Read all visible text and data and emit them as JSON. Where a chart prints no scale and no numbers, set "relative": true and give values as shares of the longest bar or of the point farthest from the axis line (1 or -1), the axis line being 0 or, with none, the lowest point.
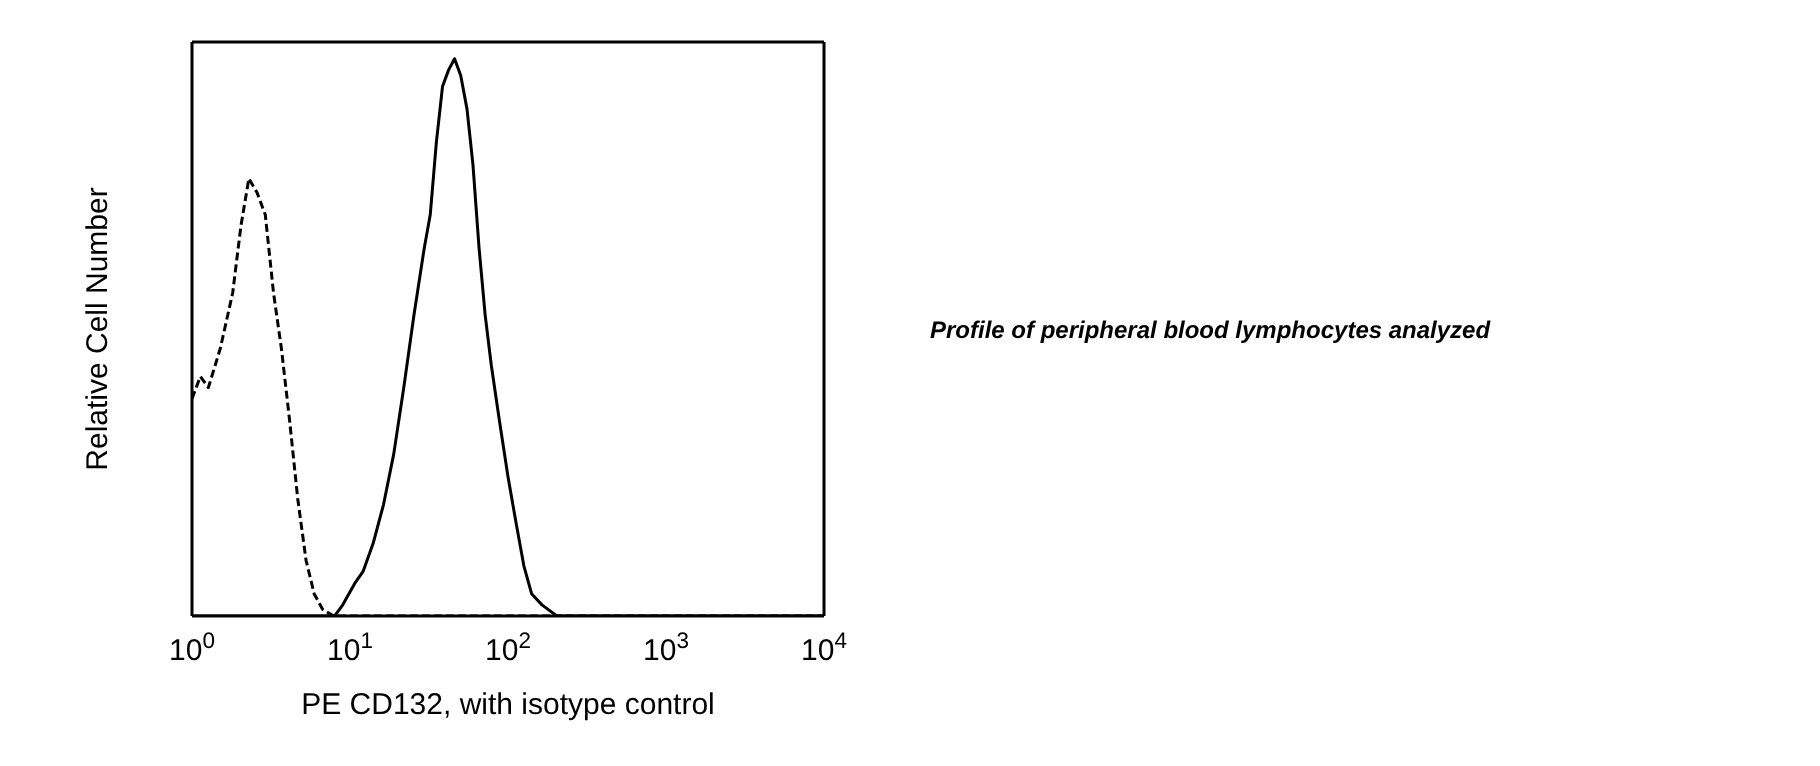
{
  "chart_data": {
    "type": "line",
    "xlabel": "PE CD132, with isotype control",
    "ylabel": "Relative Cell Number",
    "relative": true,
    "log": "x",
    "xlim": [
      1,
      10000
    ],
    "xticks": [
      {
        "value": 1,
        "label": "10$^{0}$"
      },
      {
        "value": 10,
        "label": "10$^{1}$"
      },
      {
        "value": 100,
        "label": "10$^{2}$"
      },
      {
        "value": 1000,
        "label": "10$^{3}$"
      },
      {
        "value": 10000,
        "label": "10$^{4}$"
      }
    ],
    "marker": "none",
    "annotations": [
      "Profile of peripheral blood lymphocytes analyzed"
    ],
    "series": [
      {
        "color": "#000000",
        "line_style": "dashed",
        "x": [
          1,
          1.13,
          1.27,
          1.51,
          1.81,
          2.04,
          2.29,
          2.58,
          2.91,
          3.28,
          3.68,
          4.15,
          4.67,
          5.27,
          5.93,
          6.7,
          7.9,
          20,
          100,
          1000,
          10000
        ],
        "values": [
          0.39,
          0.43,
          0.41,
          0.48,
          0.58,
          0.7,
          0.785,
          0.76,
          0.72,
          0.58,
          0.48,
          0.35,
          0.21,
          0.1,
          0.04,
          0.012,
          0,
          0,
          0,
          0,
          0
        ]
      },
      {
        "color": "#000000",
        "line_style": "solid",
        "x": [
          1,
          8,
          9,
          10.8,
          12.1,
          14,
          16.3,
          18.9,
          21.9,
          25.4,
          29.5,
          32.2,
          35.2,
          38.5,
          42.1,
          45.9,
          50.2,
          55,
          60,
          65.6,
          71.7,
          78.4,
          88.3,
          100,
          112,
          126,
          141,
          164,
          204,
          10000
        ],
        "values": [
          0,
          0,
          0.02,
          0.06,
          0.08,
          0.13,
          0.2,
          0.29,
          0.41,
          0.54,
          0.66,
          0.72,
          0.85,
          0.95,
          0.98,
          1,
          0.97,
          0.91,
          0.81,
          0.66,
          0.54,
          0.45,
          0.35,
          0.25,
          0.17,
          0.09,
          0.04,
          0.02,
          0,
          0
        ]
      }
    ]
  }
}
